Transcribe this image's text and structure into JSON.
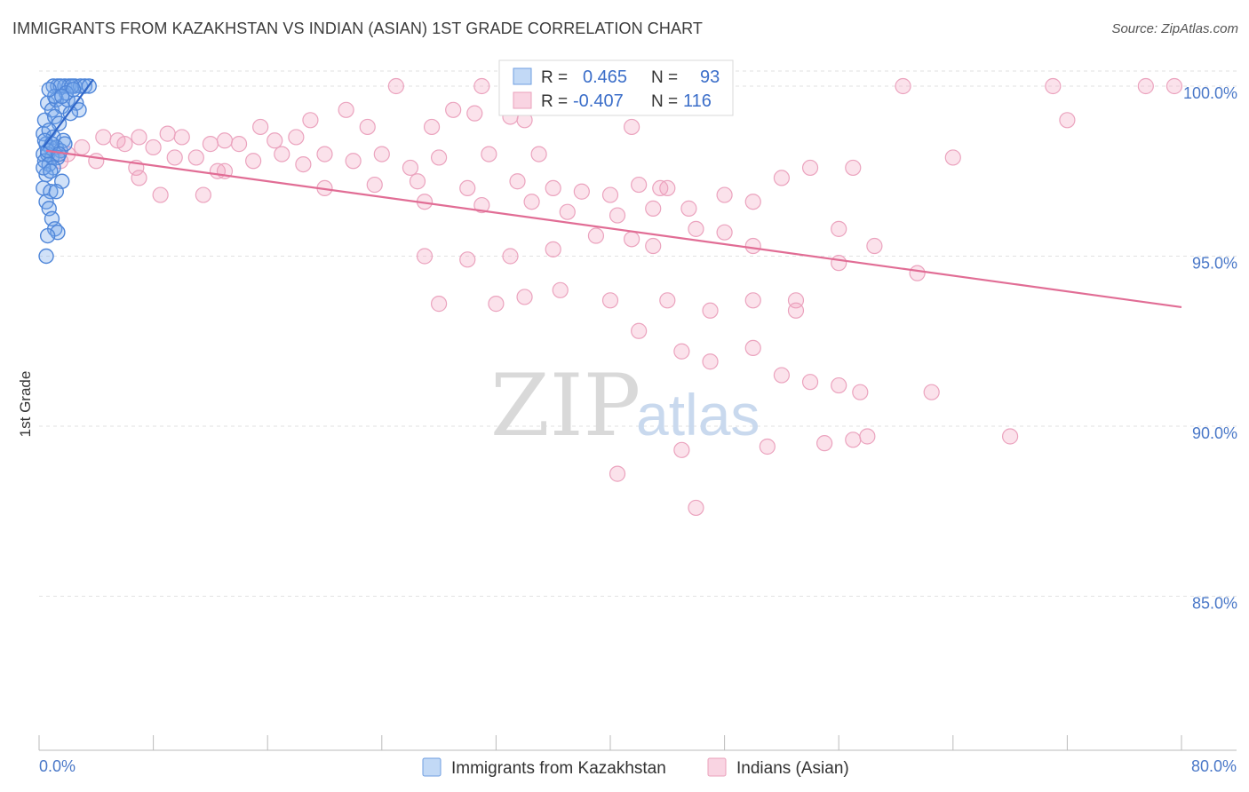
{
  "title": "IMMIGRANTS FROM KAZAKHSTAN VS INDIAN (ASIAN) 1ST GRADE CORRELATION CHART",
  "source": "Source: ZipAtlas.com",
  "watermark": {
    "part1": "ZIP",
    "part2": "atlas"
  },
  "colors": {
    "blue": "#4f86d9",
    "blue_fill": "rgba(120,170,235,0.35)",
    "pink": "#e16d95",
    "pink_fill": "rgba(242,160,190,0.3)",
    "grid": "#dddddd",
    "axis_label": "#4a78c8"
  },
  "legend": {
    "items": [
      {
        "r_label": "R =",
        "r_value": "0.465",
        "n_label": "N =",
        "n_value": "93"
      },
      {
        "r_label": "R =",
        "r_value": "-0.407",
        "n_label": "N =",
        "n_value": "116"
      }
    ]
  },
  "bottom_legend": [
    "Immigrants from Kazakhstan",
    "Indians (Asian)"
  ],
  "chart_data": {
    "type": "scatter",
    "title": "IMMIGRANTS FROM KAZAKHSTAN VS INDIAN (ASIAN) 1ST GRADE CORRELATION CHART",
    "xlabel": "",
    "ylabel": "1st Grade",
    "xlim": [
      0,
      80
    ],
    "ylim": [
      80.5,
      100.8
    ],
    "x_tick_labels": [
      "0.0%",
      "80.0%"
    ],
    "y_ticks": [
      85,
      90,
      95,
      100
    ],
    "y_tick_labels": [
      "85.0%",
      "90.0%",
      "95.0%",
      "100.0%"
    ],
    "series": [
      {
        "name": "Immigrants from Kazakhstan",
        "r": 0.465,
        "n": 93,
        "trend": {
          "x": [
            0.3,
            3.8
          ],
          "y": [
            98.2,
            100.2
          ]
        },
        "points": [
          [
            1.0,
            100.0
          ],
          [
            1.3,
            100.0
          ],
          [
            1.8,
            100.0
          ],
          [
            2.1,
            100.0
          ],
          [
            2.5,
            100.0
          ],
          [
            2.9,
            100.0
          ],
          [
            3.2,
            100.0
          ],
          [
            3.5,
            100.0
          ],
          [
            1.5,
            100.0
          ],
          [
            2.3,
            100.0
          ],
          [
            0.6,
            99.5
          ],
          [
            0.9,
            99.3
          ],
          [
            1.2,
            99.6
          ],
          [
            1.6,
            99.4
          ],
          [
            2.0,
            99.6
          ],
          [
            2.6,
            99.5
          ],
          [
            2.8,
            99.3
          ],
          [
            0.4,
            99.0
          ],
          [
            1.1,
            99.1
          ],
          [
            1.4,
            98.9
          ],
          [
            0.3,
            98.6
          ],
          [
            0.7,
            98.7
          ],
          [
            1.0,
            98.5
          ],
          [
            1.7,
            98.4
          ],
          [
            0.5,
            98.3
          ],
          [
            0.8,
            98.2
          ],
          [
            1.2,
            98.2
          ],
          [
            1.5,
            98.1
          ],
          [
            0.3,
            98.0
          ],
          [
            0.6,
            98.0
          ],
          [
            0.9,
            97.9
          ],
          [
            1.3,
            97.9
          ],
          [
            0.4,
            97.8
          ],
          [
            0.7,
            97.7
          ],
          [
            1.0,
            97.6
          ],
          [
            0.5,
            97.4
          ],
          [
            1.6,
            97.2
          ],
          [
            0.3,
            97.0
          ],
          [
            0.8,
            96.9
          ],
          [
            1.2,
            96.9
          ],
          [
            0.5,
            96.6
          ],
          [
            0.7,
            96.4
          ],
          [
            0.9,
            96.1
          ],
          [
            1.1,
            95.8
          ],
          [
            1.3,
            95.7
          ],
          [
            0.6,
            95.6
          ],
          [
            0.5,
            95.0
          ],
          [
            0.4,
            98.4
          ],
          [
            1.8,
            98.3
          ],
          [
            2.2,
            99.2
          ],
          [
            0.6,
            98.1
          ],
          [
            0.9,
            98.3
          ],
          [
            1.4,
            98.0
          ],
          [
            0.3,
            97.6
          ],
          [
            0.8,
            97.5
          ],
          [
            1.9,
            99.8
          ],
          [
            2.4,
            99.9
          ],
          [
            1.1,
            99.7
          ],
          [
            0.7,
            99.9
          ],
          [
            1.6,
            99.7
          ]
        ]
      },
      {
        "name": "Indians (Asian)",
        "r": -0.407,
        "n": 116,
        "trend": {
          "x": [
            0.5,
            80.0
          ],
          "y": [
            98.1,
            93.5
          ]
        },
        "points": [
          [
            25,
            100.0
          ],
          [
            31,
            100.0
          ],
          [
            60.5,
            100.0
          ],
          [
            71,
            100.0
          ],
          [
            77.5,
            100.0
          ],
          [
            79.5,
            100.0
          ],
          [
            21.5,
            99.3
          ],
          [
            30.5,
            99.2
          ],
          [
            29,
            99.3
          ],
          [
            33,
            99.1
          ],
          [
            34,
            99.0
          ],
          [
            19,
            99.0
          ],
          [
            15.5,
            98.8
          ],
          [
            23,
            98.8
          ],
          [
            27.5,
            98.8
          ],
          [
            41.5,
            98.8
          ],
          [
            4.5,
            98.5
          ],
          [
            5.5,
            98.4
          ],
          [
            7,
            98.5
          ],
          [
            9,
            98.6
          ],
          [
            10,
            98.5
          ],
          [
            13,
            98.4
          ],
          [
            16.5,
            98.4
          ],
          [
            18,
            98.5
          ],
          [
            14,
            98.3
          ],
          [
            12,
            98.3
          ],
          [
            6,
            98.3
          ],
          [
            8,
            98.2
          ],
          [
            3,
            98.2
          ],
          [
            2,
            98.0
          ],
          [
            17,
            98.0
          ],
          [
            20,
            98.0
          ],
          [
            24,
            98.0
          ],
          [
            28,
            97.9
          ],
          [
            31.5,
            98.0
          ],
          [
            35,
            98.0
          ],
          [
            1.5,
            97.8
          ],
          [
            4,
            97.8
          ],
          [
            6.8,
            97.6
          ],
          [
            9.5,
            97.9
          ],
          [
            11,
            97.9
          ],
          [
            12.5,
            97.5
          ],
          [
            15,
            97.8
          ],
          [
            18.5,
            97.7
          ],
          [
            22,
            97.8
          ],
          [
            26,
            97.6
          ],
          [
            20,
            97.0
          ],
          [
            23.5,
            97.1
          ],
          [
            26.5,
            97.2
          ],
          [
            30,
            97.0
          ],
          [
            33.5,
            97.2
          ],
          [
            36,
            97.0
          ],
          [
            38,
            96.9
          ],
          [
            40,
            96.8
          ],
          [
            42,
            97.1
          ],
          [
            44,
            97.0
          ],
          [
            7,
            97.3
          ],
          [
            13,
            97.5
          ],
          [
            8.5,
            96.8
          ],
          [
            11.5,
            96.8
          ],
          [
            27,
            96.6
          ],
          [
            31,
            96.5
          ],
          [
            34.5,
            96.6
          ],
          [
            37,
            96.3
          ],
          [
            40.5,
            96.2
          ],
          [
            43,
            96.4
          ],
          [
            45.5,
            96.4
          ],
          [
            48,
            96.8
          ],
          [
            50,
            96.6
          ],
          [
            52,
            97.3
          ],
          [
            54,
            97.6
          ],
          [
            56,
            95.8
          ],
          [
            57,
            97.6
          ],
          [
            58.5,
            95.3
          ],
          [
            64,
            97.9
          ],
          [
            43.5,
            97.0
          ],
          [
            27,
            95.0
          ],
          [
            30,
            94.9
          ],
          [
            33,
            95.0
          ],
          [
            36,
            95.2
          ],
          [
            39,
            95.6
          ],
          [
            41.5,
            95.5
          ],
          [
            43,
            95.3
          ],
          [
            46,
            95.8
          ],
          [
            48,
            95.7
          ],
          [
            50,
            95.3
          ],
          [
            28,
            93.6
          ],
          [
            32,
            93.6
          ],
          [
            34,
            93.8
          ],
          [
            36.5,
            94.0
          ],
          [
            40,
            93.7
          ],
          [
            44,
            93.7
          ],
          [
            47,
            93.4
          ],
          [
            50,
            93.7
          ],
          [
            53,
            93.7
          ],
          [
            56,
            94.8
          ],
          [
            42,
            92.8
          ],
          [
            45,
            92.2
          ],
          [
            47,
            91.9
          ],
          [
            50,
            92.3
          ],
          [
            52,
            91.5
          ],
          [
            54,
            91.3
          ],
          [
            56,
            91.2
          ],
          [
            57.5,
            91.0
          ],
          [
            55,
            89.5
          ],
          [
            58,
            89.7
          ],
          [
            45,
            89.3
          ],
          [
            51,
            89.4
          ],
          [
            57,
            89.6
          ],
          [
            46,
            87.6
          ],
          [
            40.5,
            88.6
          ],
          [
            53,
            93.4
          ],
          [
            61.5,
            94.5
          ],
          [
            62.5,
            91.0
          ],
          [
            68,
            89.7
          ],
          [
            72,
            99.0
          ]
        ]
      }
    ]
  }
}
